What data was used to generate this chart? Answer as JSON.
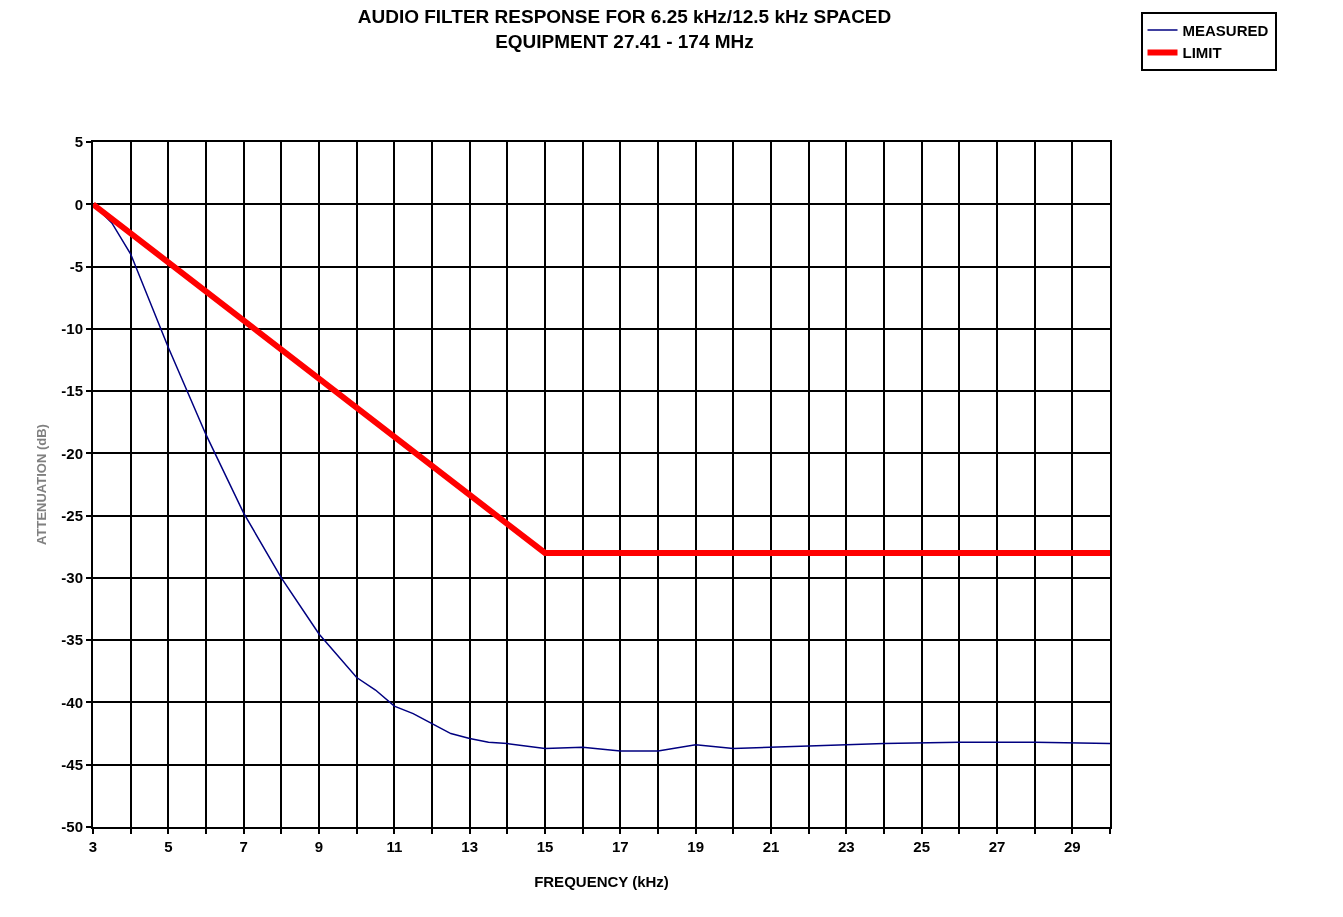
{
  "chart_data": {
    "type": "line",
    "title": "AUDIO FILTER RESPONSE FOR 6.25 kHz/12.5 kHz SPACED\nEQUIPMENT 27.41 - 174 MHz",
    "xlabel": "FREQUENCY (kHz)",
    "ylabel": "ATTENUATION (dB)",
    "series": [
      {
        "name": "MEASURED",
        "color": "#000080",
        "x": [
          3,
          3.5,
          4,
          5,
          6,
          7,
          8,
          9,
          10,
          10.5,
          11,
          11.5,
          12,
          12.5,
          13,
          13.5,
          14,
          15,
          16,
          17,
          18,
          19,
          20,
          22,
          24,
          26,
          28,
          30
        ],
        "values": [
          0,
          -1.5,
          -4,
          -11.5,
          -18.5,
          -24.8,
          -30,
          -34.5,
          -38,
          -39,
          -40.3,
          -40.9,
          -41.7,
          -42.5,
          -42.9,
          -43.2,
          -43.3,
          -43.7,
          -43.6,
          -43.9,
          -43.9,
          -43.4,
          -43.7,
          -43.5,
          -43.3,
          -43.2,
          -43.2,
          -43.3
        ]
      },
      {
        "name": "LIMIT",
        "color": "#ff0000",
        "x": [
          3,
          15,
          30
        ],
        "values": [
          0,
          -28,
          -28
        ]
      }
    ],
    "xlim": [
      3,
      30
    ],
    "xticks": [
      3,
      {
        "value": 4,
        "label": null
      },
      5,
      {
        "value": 6,
        "label": null
      },
      7,
      {
        "value": 8,
        "label": null
      },
      9,
      {
        "value": 10,
        "label": null
      },
      11,
      {
        "value": 12,
        "label": null
      },
      13,
      {
        "value": 14,
        "label": null
      },
      15,
      {
        "value": 16,
        "label": null
      },
      17,
      {
        "value": 18,
        "label": null
      },
      19,
      {
        "value": 20,
        "label": null
      },
      21,
      {
        "value": 22,
        "label": null
      },
      23,
      {
        "value": 24,
        "label": null
      },
      25,
      {
        "value": 26,
        "label": null
      },
      27,
      {
        "value": 28,
        "label": null
      },
      29,
      {
        "value": 30,
        "label": null
      }
    ],
    "ylim": [
      -50,
      5
    ],
    "yticks": [
      5,
      0,
      -5,
      -10,
      -15,
      -20,
      -25,
      -30,
      -35,
      -40,
      -45,
      -50
    ],
    "grid": true,
    "legend": "top right",
    "marker": "none",
    "line_style": "solid"
  }
}
